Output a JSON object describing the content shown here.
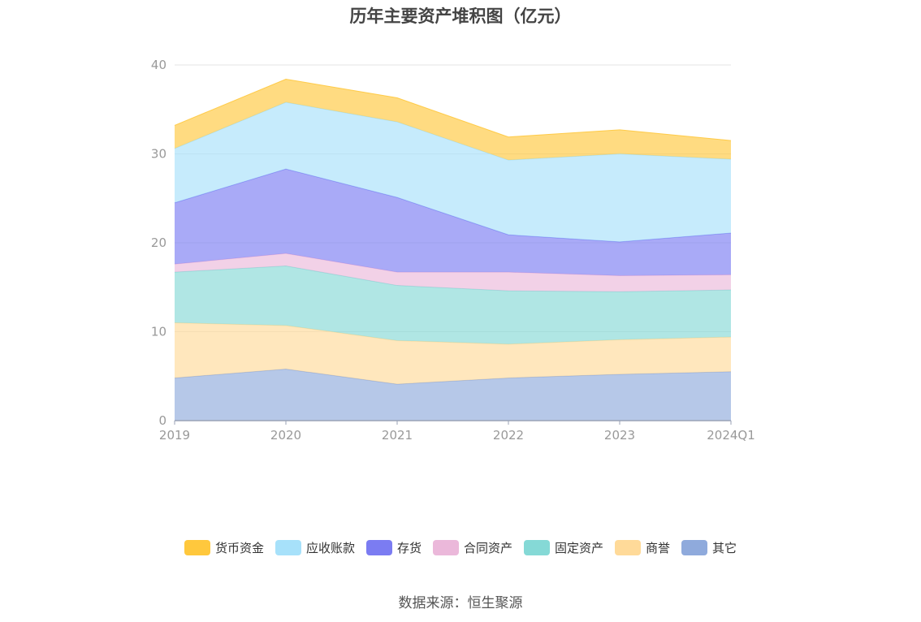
{
  "title": "历年主要资产堆积图（亿元）",
  "source": "数据来源：恒生聚源",
  "chart_data": {
    "type": "area",
    "stacked": true,
    "title": "历年主要资产堆积图（亿元）",
    "categories": [
      "2019",
      "2020",
      "2021",
      "2022",
      "2023",
      "2024Q1"
    ],
    "ylim": [
      0,
      40
    ],
    "yticks": [
      0,
      10,
      20,
      30,
      40
    ],
    "grid": true,
    "legend_position": "bottom",
    "series": [
      {
        "name": "其它",
        "color": "#8FAADC",
        "values": [
          4.8,
          5.8,
          4.1,
          4.8,
          5.2,
          5.5
        ]
      },
      {
        "name": "商誉",
        "color": "#FFDA99",
        "values": [
          6.2,
          4.9,
          4.9,
          3.8,
          3.9,
          3.9
        ]
      },
      {
        "name": "固定资产",
        "color": "#85D9D6",
        "values": [
          5.7,
          6.7,
          6.2,
          6.0,
          5.4,
          5.3
        ]
      },
      {
        "name": "合同资产",
        "color": "#EBB8DA",
        "values": [
          0.9,
          1.4,
          1.5,
          2.1,
          1.8,
          1.7
        ]
      },
      {
        "name": "存货",
        "color": "#7B7CF2",
        "values": [
          6.9,
          9.5,
          8.4,
          4.2,
          3.8,
          4.7
        ]
      },
      {
        "name": "应收账款",
        "color": "#A7E1FA",
        "values": [
          6.1,
          7.5,
          8.5,
          8.4,
          9.9,
          8.3
        ]
      },
      {
        "name": "货币资金",
        "color": "#FFC83D",
        "values": [
          2.6,
          2.6,
          2.7,
          2.6,
          2.7,
          2.1
        ]
      }
    ]
  }
}
